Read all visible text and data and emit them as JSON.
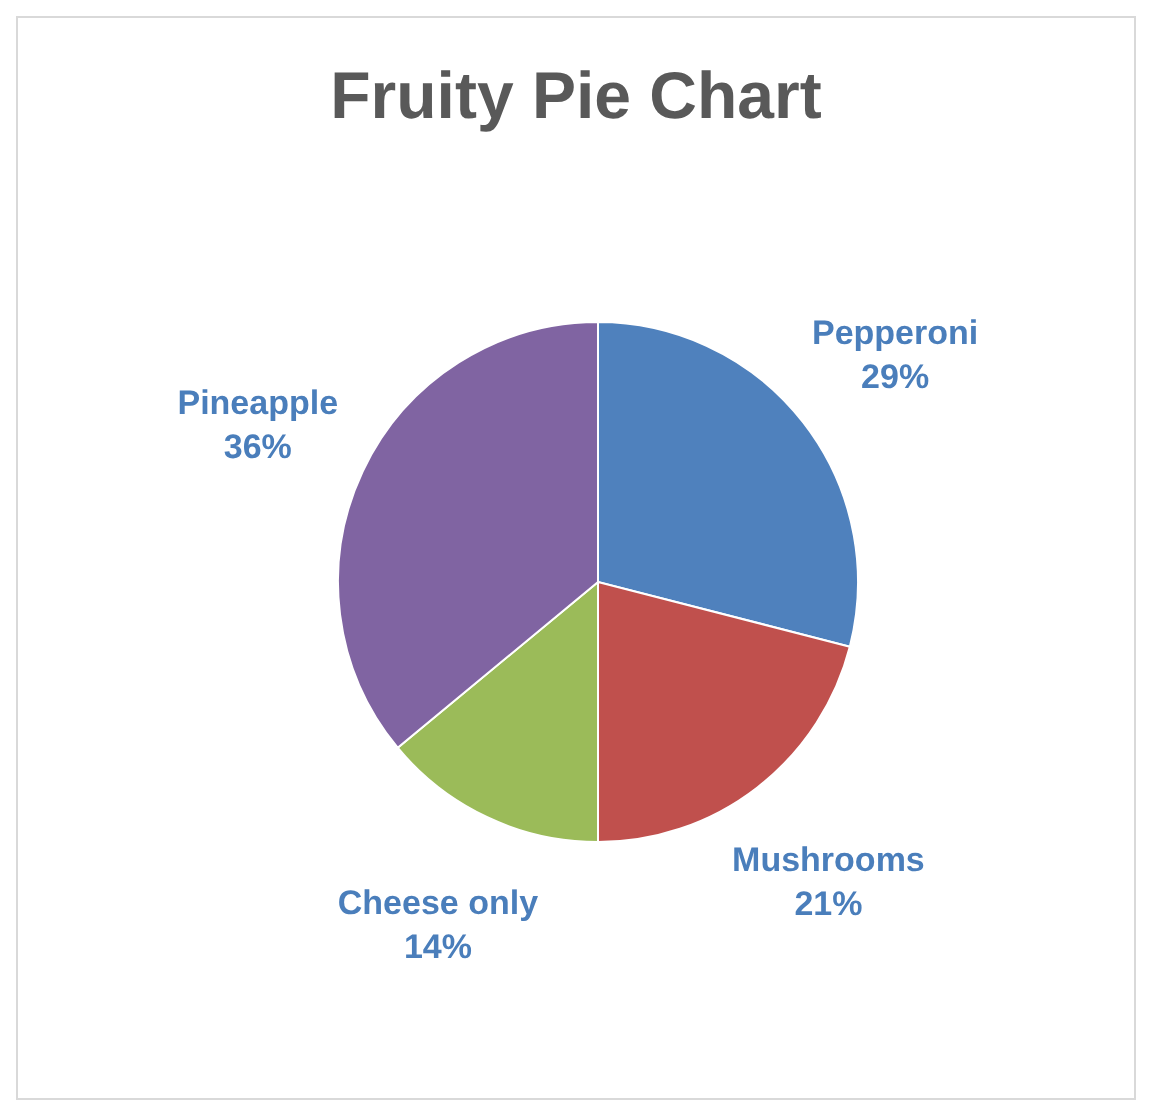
{
  "chart_data": {
    "type": "pie",
    "title": "Fruity Pie Chart",
    "categories": [
      "Pepperoni",
      "Mushrooms",
      "Cheese only",
      "Pineapple"
    ],
    "values": [
      29,
      21,
      14,
      36
    ],
    "colors": [
      "#4f81bd",
      "#c0504d",
      "#9bbb59",
      "#8064a2"
    ],
    "value_labels": [
      "29%",
      "21%",
      "14%",
      "36%"
    ]
  }
}
